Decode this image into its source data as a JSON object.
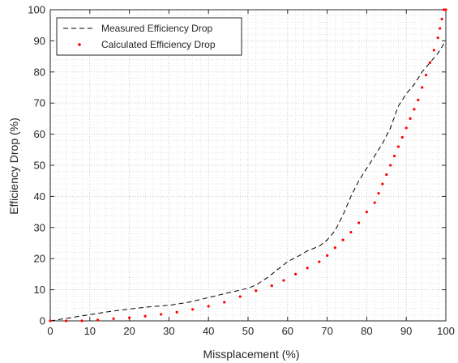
{
  "chart_data": {
    "type": "line",
    "title": "",
    "xlabel": "Missplacement (%)",
    "ylabel": "Efficiency Drop (%)",
    "xlim": [
      0,
      100
    ],
    "ylim": [
      0,
      100
    ],
    "xticks": [
      "0",
      "10",
      "20",
      "30",
      "40",
      "50",
      "60",
      "70",
      "80",
      "90",
      "100"
    ],
    "yticks": [
      "0",
      "10",
      "20",
      "30",
      "40",
      "50",
      "60",
      "70",
      "80",
      "90",
      "100"
    ],
    "grid": "dotted-minor",
    "legend_position": "top-left",
    "series": [
      {
        "name": "Measured Efficiency Drop",
        "style": "dashed",
        "color": "#000000",
        "x": [
          0,
          5,
          10,
          15,
          20,
          25,
          30,
          35,
          40,
          45,
          50,
          52,
          55,
          58,
          60,
          63,
          65,
          68,
          70,
          72,
          74,
          76,
          78,
          80,
          82,
          84,
          86,
          88,
          90,
          92,
          94,
          96,
          98,
          100
        ],
        "y": [
          0,
          1,
          2,
          3,
          3.8,
          4.5,
          5,
          6,
          7.5,
          9,
          10.5,
          11.5,
          14,
          17,
          19,
          21,
          22.5,
          24,
          26,
          29,
          34,
          40,
          45,
          49,
          53,
          57,
          62,
          69,
          73,
          76,
          80,
          83,
          86,
          90
        ]
      },
      {
        "name": "Calculated Efficiency Drop",
        "style": "dotted-markers",
        "color": "#ff0000",
        "x": [
          0,
          4,
          8,
          12,
          16,
          20,
          24,
          28,
          32,
          36,
          40,
          44,
          48,
          52,
          56,
          59,
          62,
          65,
          68,
          70,
          72,
          74,
          76,
          78,
          80,
          82,
          83,
          84,
          85,
          86,
          87,
          88,
          89,
          90,
          91,
          92,
          93,
          94,
          95,
          96,
          97,
          98,
          98.5,
          99,
          99.5,
          100
        ],
        "y": [
          0,
          0,
          0,
          0.3,
          0.7,
          1,
          1.5,
          2.1,
          2.8,
          3.7,
          4.7,
          6,
          7.8,
          9.7,
          11.3,
          13,
          15,
          17,
          19,
          21,
          23.5,
          26,
          28.5,
          31.5,
          35,
          38,
          41,
          44,
          47,
          50,
          53,
          56,
          59,
          62,
          65,
          68,
          71,
          75,
          79,
          83,
          87,
          91,
          94,
          97,
          100,
          100
        ]
      }
    ]
  }
}
